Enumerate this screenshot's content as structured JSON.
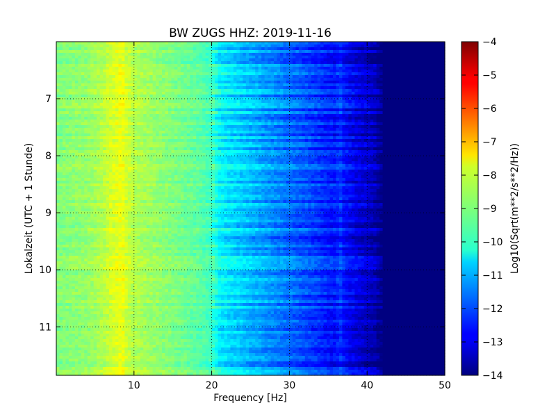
{
  "chart_data": {
    "type": "heatmap",
    "title": "BW ZUGS HHZ: 2019-11-16",
    "xlabel": "Frequency [Hz]",
    "ylabel": "Lokalzeit (UTC + 1 Stunde)",
    "xlim": [
      0,
      50
    ],
    "ylim": [
      6.0,
      11.85
    ],
    "y_inverted": true,
    "xticks": [
      10,
      20,
      30,
      40,
      50
    ],
    "xtick_labels": [
      "10",
      "20",
      "30",
      "40",
      "50"
    ],
    "yticks": [
      7,
      8,
      9,
      10,
      11
    ],
    "ytick_labels": [
      "7",
      "8",
      "9",
      "10",
      "11"
    ],
    "grid": true,
    "colormap": "jet",
    "colorbar": {
      "label": "Log10(Sqrt(m**2/s**2/Hz))",
      "range": [
        -14,
        -4
      ],
      "ticks": [
        -4,
        -5,
        -6,
        -7,
        -8,
        -9,
        -10,
        -11,
        -12,
        -13,
        -14
      ],
      "tick_labels": [
        "−4",
        "−5",
        "−6",
        "−7",
        "−8",
        "−9",
        "−10",
        "−11",
        "−12",
        "−13",
        "−14"
      ]
    },
    "spectrum_profile": {
      "frequency_hz": [
        0,
        2,
        4,
        6,
        7,
        8,
        8.5,
        9,
        10,
        12,
        15,
        18,
        20,
        21,
        22,
        24,
        26,
        28,
        30,
        32,
        34,
        35,
        36,
        36.5,
        37,
        38,
        40,
        41,
        41.5,
        42,
        50
      ],
      "log10_amplitude": [
        -9.0,
        -8.9,
        -8.8,
        -8.5,
        -8.2,
        -8.0,
        -7.9,
        -8.2,
        -8.5,
        -8.7,
        -9.0,
        -9.3,
        -9.6,
        -10.3,
        -10.5,
        -10.8,
        -11.1,
        -11.4,
        -11.7,
        -12.0,
        -12.3,
        -12.5,
        -12.6,
        -12.2,
        -12.6,
        -12.9,
        -13.3,
        -13.5,
        -13.8,
        -14.0,
        -14.0
      ]
    }
  }
}
